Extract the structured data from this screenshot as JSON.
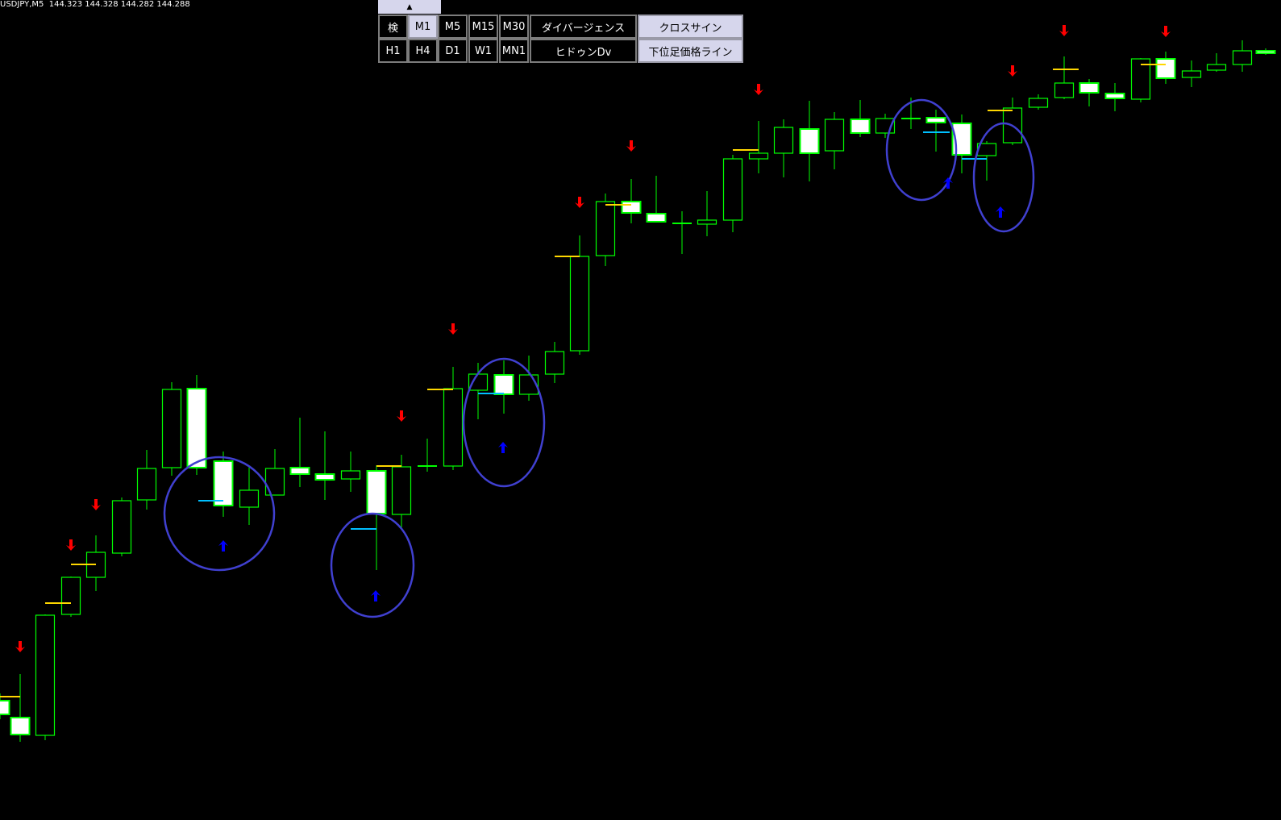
{
  "header": {
    "symbol": "USDJPY,M5",
    "prices": "144.323 144.328 144.282 144.288"
  },
  "panel": {
    "collapse_icon": "triangle-up-icon",
    "collapse_glyph": "▲",
    "row1": [
      {
        "label": "検",
        "active": false
      },
      {
        "label": "M1",
        "active": true
      },
      {
        "label": "M5",
        "active": false
      },
      {
        "label": "M15",
        "active": false
      },
      {
        "label": "M30",
        "active": false
      },
      {
        "label": "ダイバージェンス",
        "active": false
      },
      {
        "label": "クロスサイン",
        "active": true
      }
    ],
    "row2": [
      {
        "label": "H1",
        "active": false
      },
      {
        "label": "H4",
        "active": false
      },
      {
        "label": "D1",
        "active": false
      },
      {
        "label": "W1",
        "active": false
      },
      {
        "label": "MN1",
        "active": false
      },
      {
        "label": "ヒドゥンDv",
        "active": false
      },
      {
        "label": "下位足価格ライン",
        "active": true
      }
    ]
  },
  "colors": {
    "background": "#000000",
    "candle_outline": "#00ff00",
    "bear_body": "#ffffff",
    "sell_arrow": "#ff0000",
    "buy_arrow": "#0000ff",
    "highlight_circle": "#4040d0",
    "upper_line": "#ffd700",
    "lower_line": "#00bfff"
  }
}
